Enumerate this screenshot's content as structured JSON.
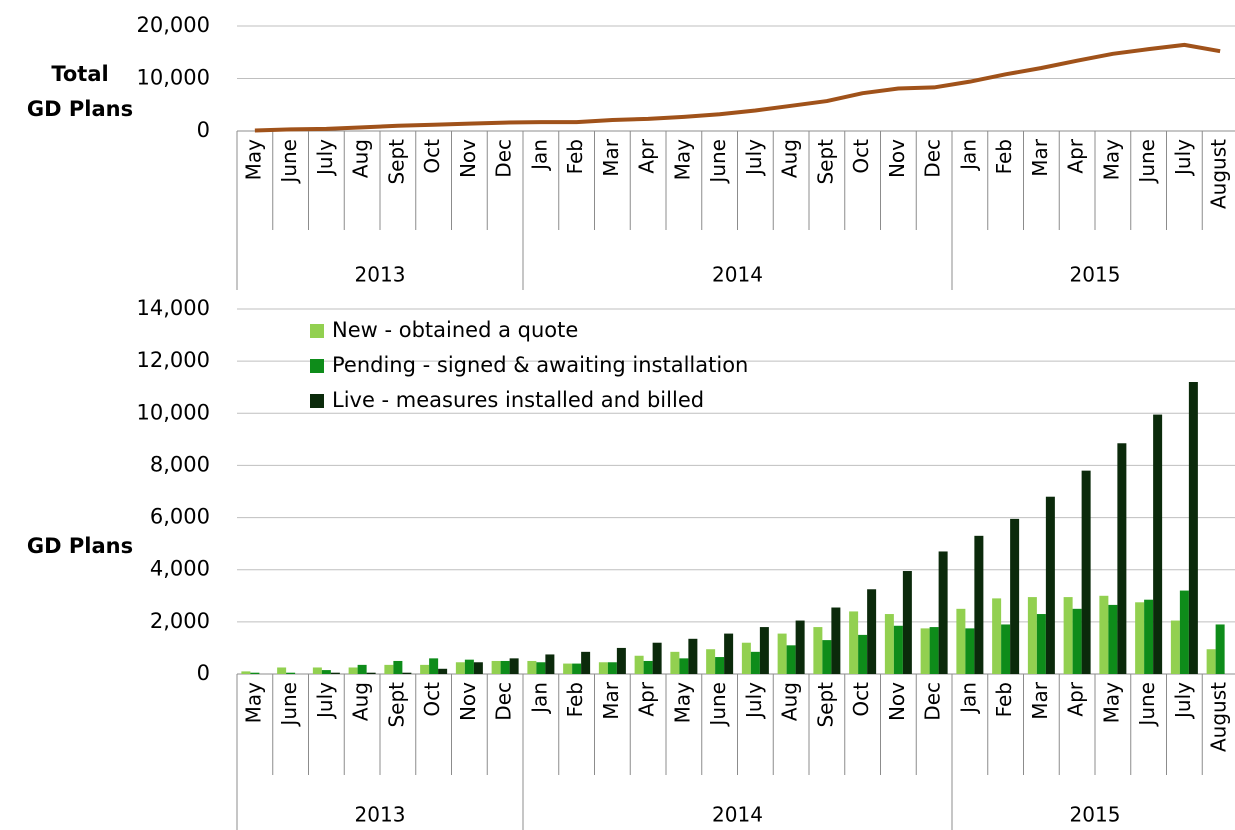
{
  "chart_data": [
    {
      "type": "line",
      "ylabel": [
        "Total",
        "GD Plans"
      ],
      "categories": [
        "May",
        "June",
        "July",
        "Aug",
        "Sept",
        "Oct",
        "Nov",
        "Dec",
        "Jan",
        "Feb",
        "Mar",
        "Apr",
        "May",
        "June",
        "July",
        "Aug",
        "Sept",
        "Oct",
        "Nov",
        "Dec",
        "Jan",
        "Feb",
        "Mar",
        "Apr",
        "May",
        "June",
        "July",
        "August"
      ],
      "groups": [
        {
          "name": "2013",
          "size": 8
        },
        {
          "name": "2014",
          "size": 12
        },
        {
          "name": "2015",
          "size": 8
        }
      ],
      "series": [
        {
          "color": "#a0521a",
          "values": [
            100,
            300,
            400,
            700,
            1000,
            1200,
            1400,
            1600,
            1700,
            1700,
            2100,
            2300,
            2700,
            3200,
            3900,
            4800,
            5700,
            7200,
            8100,
            8300,
            9400,
            10800,
            12000,
            13400,
            14700,
            15600,
            16400,
            15200
          ]
        }
      ],
      "ylim": [
        0,
        20000
      ],
      "yticks": [
        0,
        {
          "value": 10000,
          "label": "10,000"
        },
        {
          "value": 20000,
          "label": "20,000"
        }
      ],
      "grid": true
    },
    {
      "type": "bar",
      "ylabel": [
        "GD Plans"
      ],
      "categories": [
        "May",
        "June",
        "July",
        "Aug",
        "Sept",
        "Oct",
        "Nov",
        "Dec",
        "Jan",
        "Feb",
        "Mar",
        "Apr",
        "May",
        "June",
        "July",
        "Aug",
        "Sept",
        "Oct",
        "Nov",
        "Dec",
        "Jan",
        "Feb",
        "Mar",
        "Apr",
        "May",
        "June",
        "July",
        "August"
      ],
      "groups": [
        {
          "name": "2013",
          "size": 8
        },
        {
          "name": "2014",
          "size": 12
        },
        {
          "name": "2015",
          "size": 8
        }
      ],
      "series": [
        {
          "name": "New - obtained a quote",
          "color": "#92d050",
          "values": [
            100,
            250,
            250,
            250,
            350,
            350,
            450,
            500,
            500,
            400,
            450,
            700,
            850,
            950,
            1200,
            1550,
            1800,
            2400,
            2300,
            1750,
            2500,
            2900,
            2950,
            2950,
            3000,
            2750,
            2050,
            950
          ]
        },
        {
          "name": "Pending - signed & awaiting installation",
          "color": "#0e8c1a",
          "values": [
            50,
            50,
            150,
            350,
            500,
            600,
            550,
            500,
            450,
            400,
            450,
            500,
            600,
            650,
            850,
            1100,
            1300,
            1500,
            1850,
            1800,
            1750,
            1900,
            2300,
            2500,
            2650,
            2850,
            3200,
            1900
          ]
        },
        {
          "name": "Live - measures installed and billed",
          "color": "#0b2a0b",
          "values": [
            0,
            0,
            50,
            50,
            50,
            200,
            450,
            600,
            750,
            850,
            1000,
            1200,
            1350,
            1550,
            1800,
            2050,
            2550,
            3250,
            3950,
            4700,
            5300,
            5950,
            6800,
            7800,
            8850,
            9950,
            11200,
            null
          ]
        }
      ],
      "ylim": [
        0,
        14000
      ],
      "yticks": [
        0,
        {
          "value": 2000,
          "label": "2,000"
        },
        {
          "value": 4000,
          "label": "4,000"
        },
        {
          "value": 6000,
          "label": "6,000"
        },
        {
          "value": 8000,
          "label": "8,000"
        },
        {
          "value": 10000,
          "label": "10,000"
        },
        {
          "value": 12000,
          "label": "12,000"
        },
        {
          "value": 14000,
          "label": "14,000"
        }
      ],
      "grid": true,
      "legend": "top-left"
    }
  ]
}
